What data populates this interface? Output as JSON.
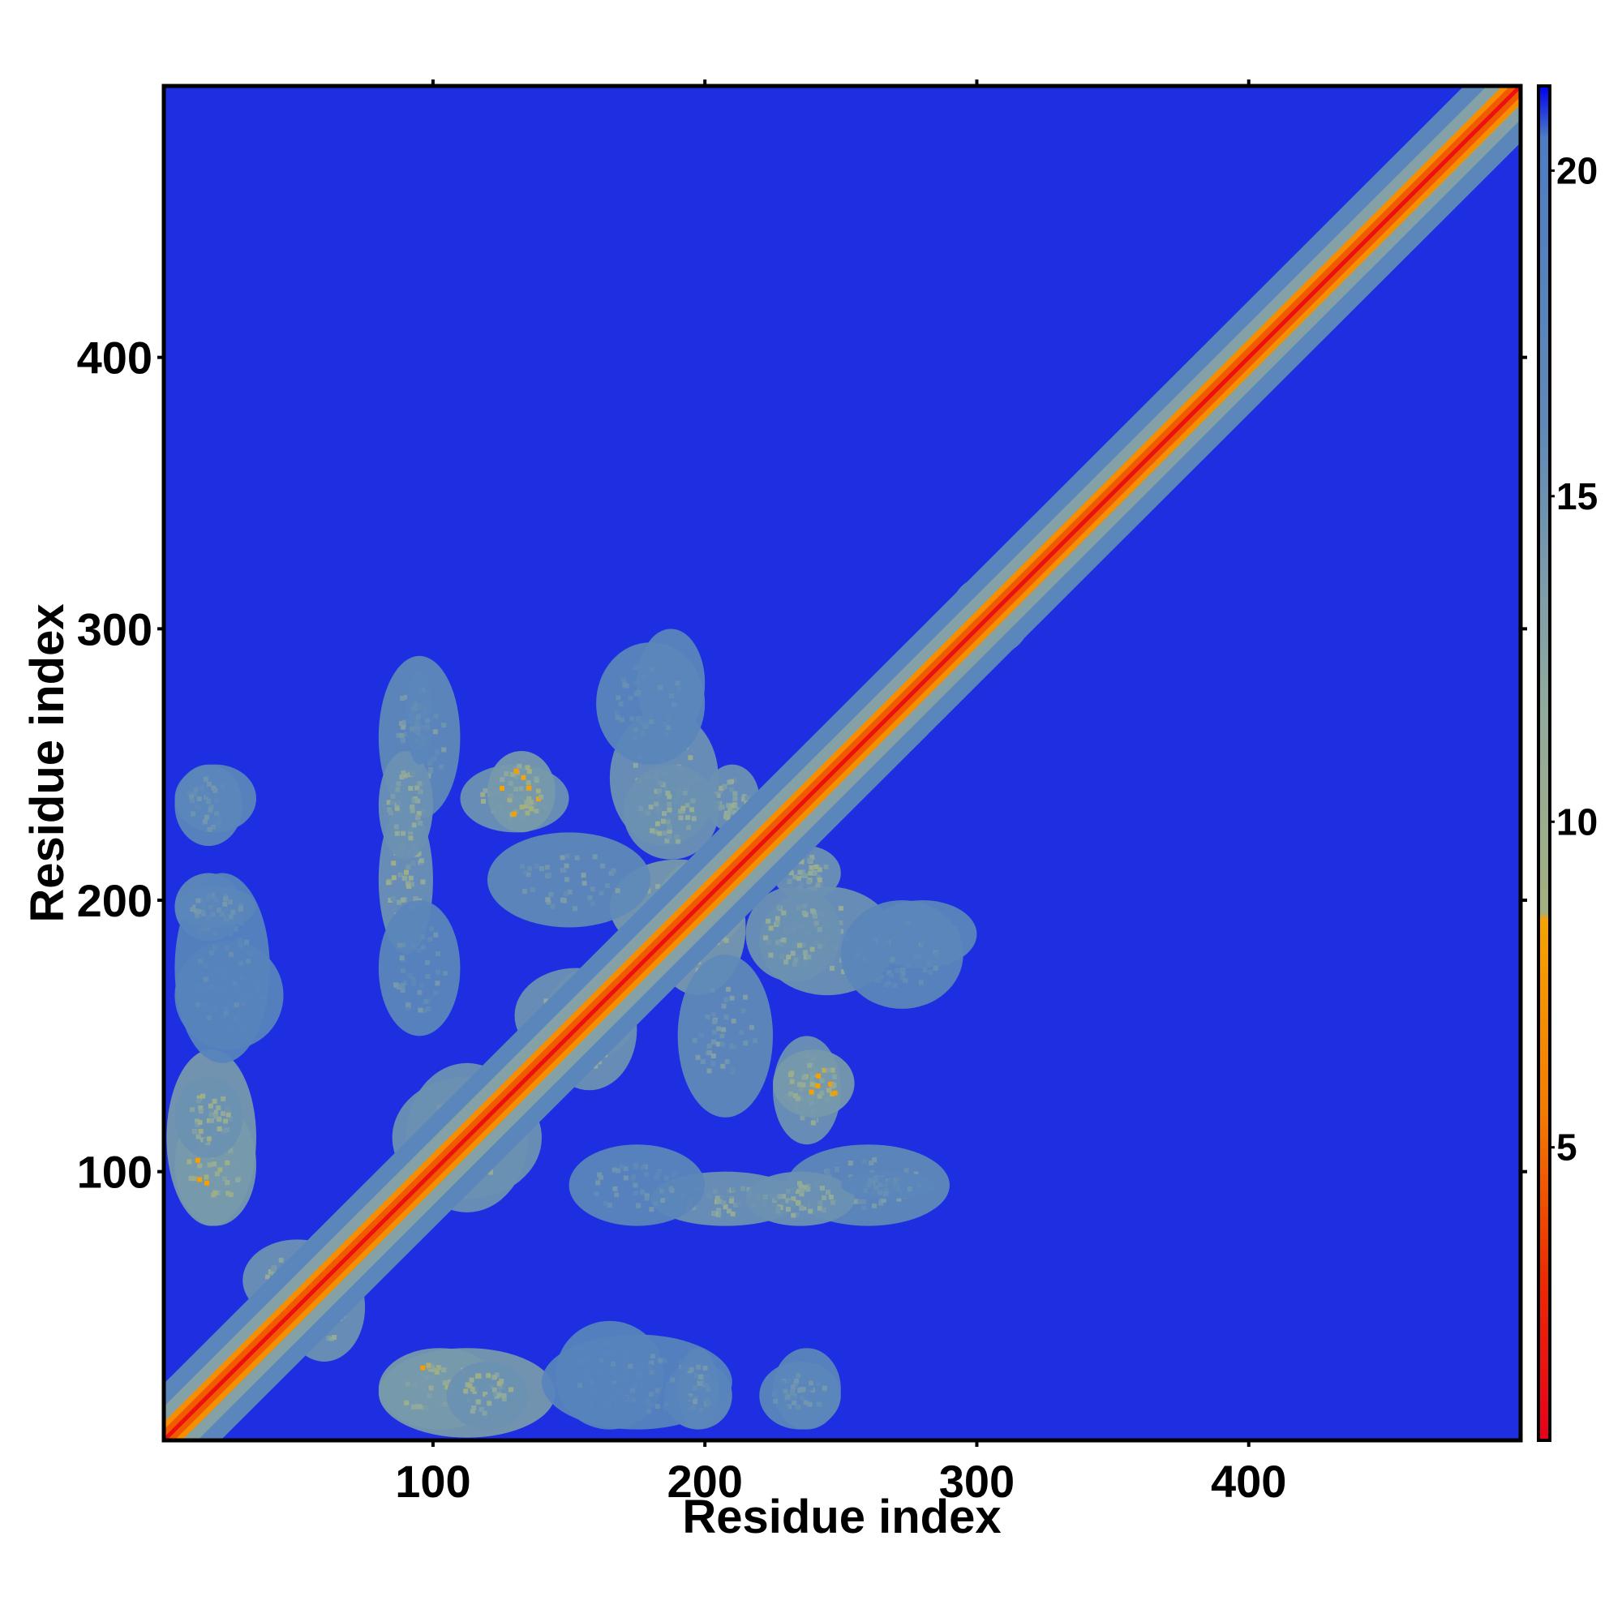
{
  "chart_data": {
    "type": "heatmap",
    "title": "",
    "xlabel": "Residue index",
    "ylabel": "Residue index",
    "xlim": [
      1,
      500
    ],
    "ylim": [
      1,
      500
    ],
    "x_ticks": [
      100,
      200,
      300,
      400
    ],
    "y_ticks": [
      100,
      200,
      300,
      400
    ],
    "colorbar": {
      "range": [
        0.5,
        21.3
      ],
      "ticks": [
        5,
        10,
        15,
        20
      ],
      "colors": [
        {
          "value": 0.5,
          "color": "#e8001a"
        },
        {
          "value": 3.0,
          "color": "#ee2a00"
        },
        {
          "value": 5.5,
          "color": "#f37a00"
        },
        {
          "value": 8.5,
          "color": "#f6a400"
        },
        {
          "value": 8.6,
          "color": "#a3b07e"
        },
        {
          "value": 12.0,
          "color": "#8fa9a0"
        },
        {
          "value": 16.0,
          "color": "#5f89b8"
        },
        {
          "value": 20.5,
          "color": "#4c7dc4"
        },
        {
          "value": 21.3,
          "color": "#0000f2"
        }
      ]
    },
    "background_value": 21,
    "diagonal": {
      "from": 1,
      "to": 500,
      "values": [
        {
          "offset": 0,
          "value": 1.5
        },
        {
          "offset": 2,
          "value": 4.5
        },
        {
          "offset": 4,
          "value": 7
        },
        {
          "offset": 8,
          "value": 13
        },
        {
          "offset": 14,
          "value": 17
        }
      ]
    },
    "contact_regions": [
      {
        "x": [
          2,
          35
        ],
        "y": [
          80,
          145
        ],
        "value": 14,
        "core_value": 9
      },
      {
        "x": [
          5,
          30
        ],
        "y": [
          185,
          210
        ],
        "value": 16,
        "core_value": 13
      },
      {
        "x": [
          5,
          35
        ],
        "y": [
          225,
          250
        ],
        "value": 17,
        "core_value": 15
      },
      {
        "x": [
          5,
          45
        ],
        "y": [
          145,
          185
        ],
        "value": 18,
        "core_value": 16
      },
      {
        "x": [
          80,
          125
        ],
        "y": [
          5,
          35
        ],
        "value": 14,
        "core_value": 8
      },
      {
        "x": [
          105,
          135
        ],
        "y": [
          5,
          30
        ],
        "value": 15,
        "core_value": 9
      },
      {
        "x": [
          140,
          210
        ],
        "y": [
          5,
          40
        ],
        "value": 18,
        "core_value": 15
      },
      {
        "x": [
          190,
          205
        ],
        "y": [
          5,
          35
        ],
        "value": 17,
        "core_value": 14
      },
      {
        "x": [
          220,
          250
        ],
        "y": [
          5,
          30
        ],
        "value": 17,
        "core_value": 14
      },
      {
        "x": [
          30,
          70
        ],
        "y": [
          45,
          75
        ],
        "value": 15,
        "core_value": 11
      },
      {
        "x": [
          80,
          110
        ],
        "y": [
          230,
          290
        ],
        "value": 16,
        "core_value": 13
      },
      {
        "x": [
          80,
          100
        ],
        "y": [
          180,
          235
        ],
        "value": 15,
        "core_value": 9
      },
      {
        "x": [
          85,
          140
        ],
        "y": [
          90,
          135
        ],
        "value": 15,
        "core_value": 10
      },
      {
        "x": [
          110,
          150
        ],
        "y": [
          225,
          250
        ],
        "value": 15,
        "core_value": 9
      },
      {
        "x": [
          130,
          175
        ],
        "y": [
          140,
          175
        ],
        "value": 15,
        "core_value": 10
      },
      {
        "x": [
          150,
          200
        ],
        "y": [
          80,
          110
        ],
        "value": 17,
        "core_value": 14
      },
      {
        "x": [
          165,
          215
        ],
        "y": [
          180,
          215
        ],
        "value": 14,
        "core_value": 7
      },
      {
        "x": [
          165,
          205
        ],
        "y": [
          220,
          270
        ],
        "value": 15,
        "core_value": 10
      },
      {
        "x": [
          175,
          200
        ],
        "y": [
          260,
          300
        ],
        "value": 17,
        "core_value": 15
      },
      {
        "x": [
          190,
          225
        ],
        "y": [
          120,
          180
        ],
        "value": 16,
        "core_value": 13
      },
      {
        "x": [
          200,
          220
        ],
        "y": [
          225,
          250
        ],
        "value": 15,
        "core_value": 10
      },
      {
        "x": [
          215,
          255
        ],
        "y": [
          80,
          100
        ],
        "value": 15,
        "core_value": 10
      },
      {
        "x": [
          215,
          250
        ],
        "y": [
          170,
          205
        ],
        "value": 15,
        "core_value": 10
      },
      {
        "x": [
          225,
          255
        ],
        "y": [
          120,
          145
        ],
        "value": 14,
        "core_value": 8
      },
      {
        "x": [
          250,
          295
        ],
        "y": [
          160,
          200
        ],
        "value": 17,
        "core_value": 15
      },
      {
        "x": [
          250,
          285
        ],
        "y": [
          90,
          100
        ],
        "value": 17,
        "core_value": 15
      },
      {
        "x": [
          290,
          320
        ],
        "y": [
          290,
          320
        ],
        "value": 15,
        "core_value": 11
      },
      {
        "x": [
          480,
          500
        ],
        "y": [
          480,
          500
        ],
        "value": 14,
        "core_value": 11
      }
    ]
  }
}
